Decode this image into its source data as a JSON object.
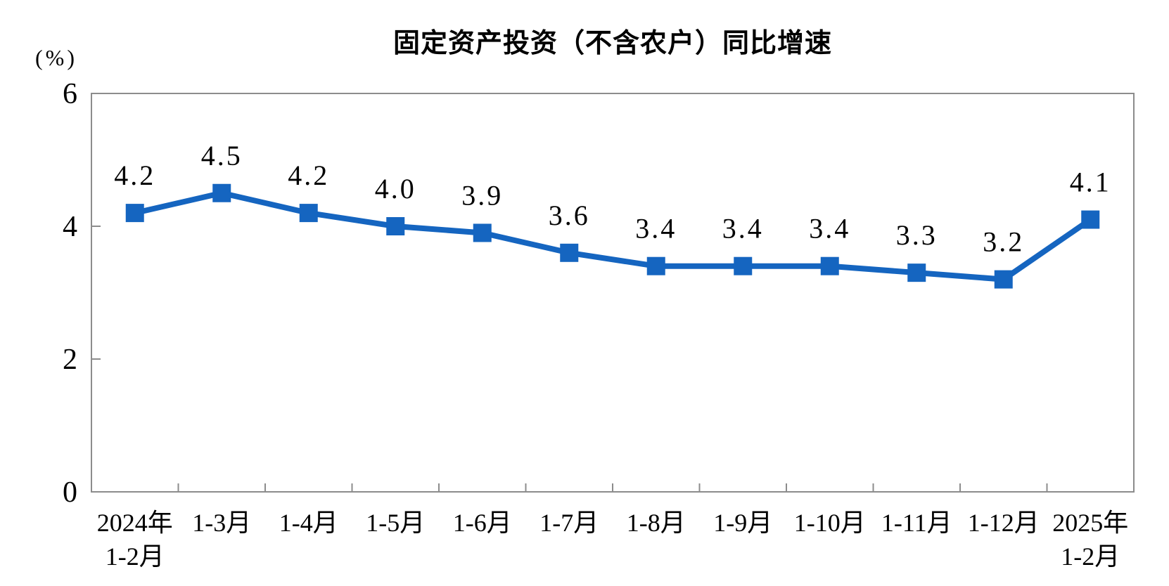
{
  "chart_data": {
    "type": "line",
    "title": "固定资产投资（不含农户）同比增速",
    "unit_label": "(%)",
    "categories": [
      "2024年\n1-2月",
      "1-3月",
      "1-4月",
      "1-5月",
      "1-6月",
      "1-7月",
      "1-8月",
      "1-9月",
      "1-10月",
      "1-11月",
      "1-12月",
      "2025年\n1-2月"
    ],
    "values": [
      4.2,
      4.5,
      4.2,
      4.0,
      3.9,
      3.6,
      3.4,
      3.4,
      3.4,
      3.3,
      3.2,
      4.1
    ],
    "data_labels": [
      "4.2",
      "4.5",
      "4.2",
      "4.0",
      "3.9",
      "3.6",
      "3.4",
      "3.4",
      "3.4",
      "3.3",
      "3.2",
      "4.1"
    ],
    "xlabel": "",
    "ylabel": "(%)",
    "ylim": [
      0,
      6
    ],
    "yticks": [
      0,
      2,
      4,
      6
    ],
    "grid": false,
    "legend_position": "none",
    "marker": "square",
    "line_color": "#1565C0",
    "axis_color": "#8C8C8C",
    "text_color": "#000000",
    "background_color": "#FFFFFF"
  }
}
